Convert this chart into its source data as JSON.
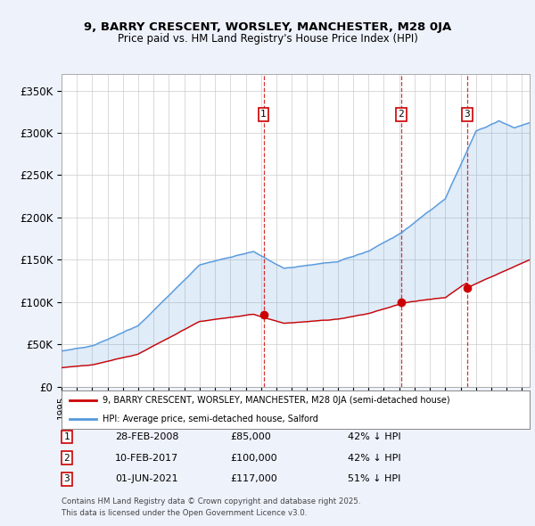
{
  "title1": "9, BARRY CRESCENT, WORSLEY, MANCHESTER, M28 0JA",
  "title2": "Price paid vs. HM Land Registry's House Price Index (HPI)",
  "ylim": [
    0,
    370000
  ],
  "yticks": [
    0,
    50000,
    100000,
    150000,
    200000,
    250000,
    300000,
    350000
  ],
  "ytick_labels": [
    "£0",
    "£50K",
    "£100K",
    "£150K",
    "£200K",
    "£250K",
    "£300K",
    "£350K"
  ],
  "sale_dates": [
    "28-FEB-2008",
    "10-FEB-2017",
    "01-JUN-2021"
  ],
  "sale_prices": [
    85000,
    100000,
    117000
  ],
  "sale_hpi_pct": [
    "42% ↓ HPI",
    "42% ↓ HPI",
    "51% ↓ HPI"
  ],
  "sale_years": [
    2008.16,
    2017.12,
    2021.42
  ],
  "legend_red": "9, BARRY CRESCENT, WORSLEY, MANCHESTER, M28 0JA (semi-detached house)",
  "legend_blue": "HPI: Average price, semi-detached house, Salford",
  "footer1": "Contains HM Land Registry data © Crown copyright and database right 2025.",
  "footer2": "This data is licensed under the Open Government Licence v3.0.",
  "bg_color": "#eef2fb",
  "plot_bg_color": "#ffffff",
  "grid_color": "#cccccc",
  "red_color": "#cc0000",
  "blue_color": "#5599dd"
}
